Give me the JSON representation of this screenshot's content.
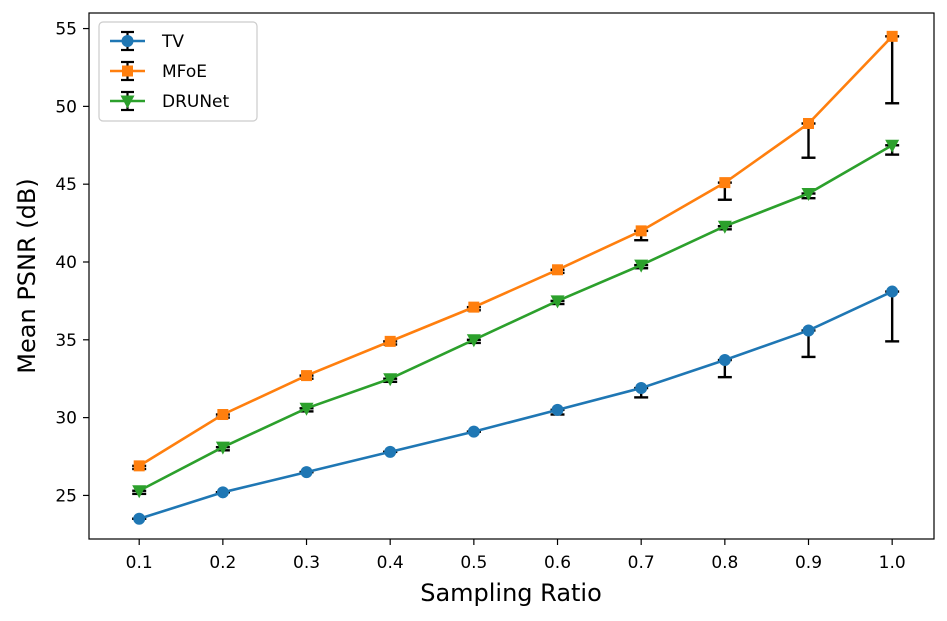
{
  "chart_data": {
    "type": "line",
    "title": "",
    "xlabel": "Sampling Ratio",
    "ylabel": "Mean PSNR (dB)",
    "x": [
      0.1,
      0.2,
      0.3,
      0.4,
      0.5,
      0.6,
      0.7,
      0.8,
      0.9,
      1.0
    ],
    "x_tick_labels": [
      "0.1",
      "0.2",
      "0.3",
      "0.4",
      "0.5",
      "0.6",
      "0.7",
      "0.8",
      "0.9",
      "1.0"
    ],
    "y_ticks": [
      25,
      30,
      35,
      40,
      45,
      50,
      55
    ],
    "y_tick_labels": [
      "25",
      "30",
      "35",
      "40",
      "45",
      "50",
      "55"
    ],
    "xlim": [
      0.04,
      1.05
    ],
    "ylim": [
      22.2,
      56.0
    ],
    "grid": false,
    "legend_position": "upper-left",
    "series": [
      {
        "name": "TV",
        "color": "#1f77b4",
        "marker": "circle",
        "values": [
          23.5,
          25.2,
          26.5,
          27.8,
          29.1,
          30.5,
          31.9,
          33.7,
          35.6,
          38.1
        ],
        "err_minus": [
          0.0,
          0.0,
          0.0,
          0.0,
          0.0,
          0.3,
          0.6,
          1.1,
          1.7,
          3.2
        ],
        "err_plus": [
          0.0,
          0.0,
          0.0,
          0.0,
          0.0,
          0.0,
          0.0,
          0.0,
          0.0,
          0.0
        ]
      },
      {
        "name": "MFoE",
        "color": "#ff7f0e",
        "marker": "square",
        "values": [
          26.9,
          30.2,
          32.7,
          34.9,
          37.1,
          39.5,
          42.0,
          45.1,
          48.9,
          54.5
        ],
        "err_minus": [
          0.2,
          0.2,
          0.2,
          0.2,
          0.2,
          0.2,
          0.6,
          1.1,
          2.2,
          4.3
        ],
        "err_plus": [
          0.0,
          0.0,
          0.0,
          0.0,
          0.0,
          0.0,
          0.0,
          0.0,
          0.0,
          0.0
        ]
      },
      {
        "name": "DRUNet",
        "color": "#2ca02c",
        "marker": "triangle-down",
        "values": [
          25.3,
          28.1,
          30.6,
          32.5,
          35.0,
          37.5,
          39.8,
          42.3,
          44.4,
          47.5
        ],
        "err_minus": [
          0.2,
          0.2,
          0.2,
          0.2,
          0.2,
          0.2,
          0.2,
          0.2,
          0.3,
          0.6
        ],
        "err_plus": [
          0.0,
          0.0,
          0.0,
          0.0,
          0.0,
          0.0,
          0.0,
          0.0,
          0.0,
          0.0
        ]
      }
    ]
  }
}
